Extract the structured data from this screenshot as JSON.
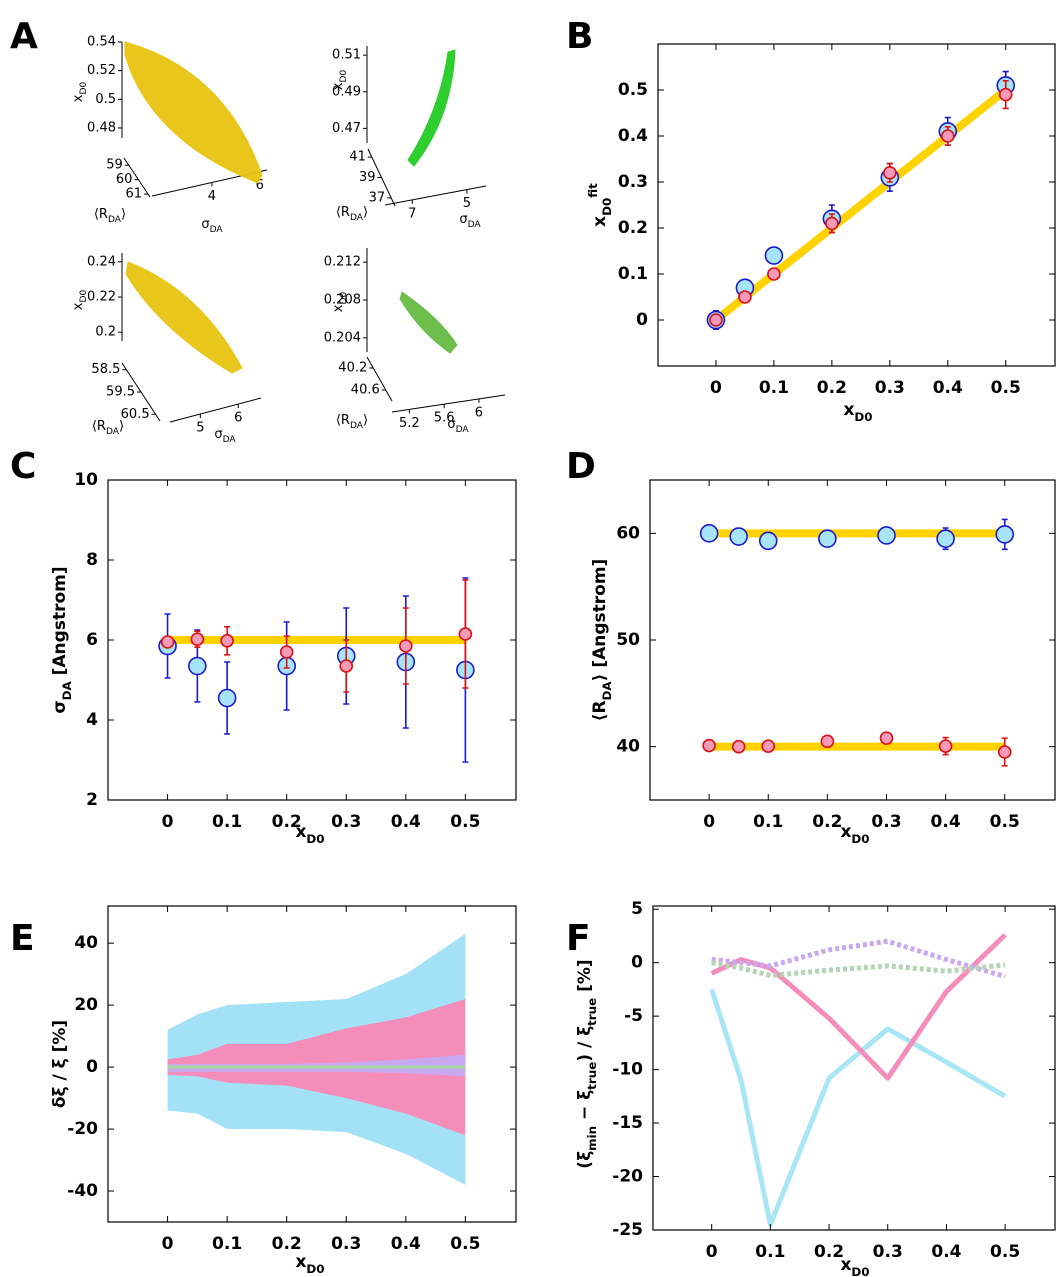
{
  "chart_data": [
    {
      "type": "surface3d",
      "label": "A",
      "subplots": [
        {
          "color": "#e8c410",
          "zlim": [
            0.473,
            0.54
          ],
          "zticks": [
            0.54,
            0.52,
            0.5,
            0.48
          ],
          "ylim": [
            58.5,
            61.2
          ],
          "yticks": [
            59,
            60,
            61
          ],
          "xlim": [
            1.5,
            6.3
          ],
          "xticks": [
            4,
            6
          ],
          "zlabel": [
            {
              "text": "x"
            },
            {
              "text": "D0",
              "script": "sub"
            }
          ],
          "ylabel": [
            {
              "text": "⟨R"
            },
            {
              "text": "DA",
              "script": "sub"
            },
            {
              "text": "⟩"
            }
          ],
          "xlabel": [
            {
              "text": "σ"
            },
            {
              "text": "DA",
              "script": "sub"
            }
          ]
        },
        {
          "color": "#22cc22",
          "zlim": [
            0.462,
            0.515
          ],
          "zticks": [
            0.51,
            0.49,
            0.47
          ],
          "ylim": [
            41.8,
            36.2
          ],
          "yticks": [
            41,
            39,
            37
          ],
          "xlim": [
            8,
            4.3
          ],
          "xticks": [
            7,
            5
          ],
          "zlabel": [
            {
              "text": "x"
            },
            {
              "text": "D0",
              "script": "sub"
            }
          ],
          "ylabel": [
            {
              "text": "⟨R"
            },
            {
              "text": "DA",
              "script": "sub"
            },
            {
              "text": "⟩"
            }
          ],
          "xlabel": [
            {
              "text": "σ"
            },
            {
              "text": "DA",
              "script": "sub"
            }
          ]
        },
        {
          "color": "#e8c410",
          "zlim": [
            0.195,
            0.245
          ],
          "zticks": [
            0.24,
            0.22,
            0.2
          ],
          "ylim": [
            58.2,
            60.8
          ],
          "yticks": [
            58.5,
            59.5,
            60.5
          ],
          "xlim": [
            4.2,
            6.6
          ],
          "xticks": [
            5,
            6
          ],
          "zlabel": [
            {
              "text": "x"
            },
            {
              "text": "D0",
              "script": "sub"
            }
          ],
          "ylabel": [
            {
              "text": "⟨R"
            },
            {
              "text": "DA",
              "script": "sub"
            },
            {
              "text": "⟩"
            }
          ],
          "xlabel": [
            {
              "text": "σ"
            },
            {
              "text": "DA",
              "script": "sub"
            }
          ]
        },
        {
          "color": "#66bb44",
          "zlim": [
            0.2025,
            0.2135
          ],
          "zticks": [
            0.212,
            0.208,
            0.204
          ],
          "ylim": [
            40.0,
            40.8
          ],
          "yticks": [
            40.2,
            40.6
          ],
          "xlim": [
            5.0,
            6.3
          ],
          "xticks": [
            5.2,
            5.6,
            6
          ],
          "zlabel": [
            {
              "text": "x"
            },
            {
              "text": "D0",
              "script": "sub"
            }
          ],
          "ylabel": [
            {
              "text": "⟨R"
            },
            {
              "text": "DA",
              "script": "sub"
            },
            {
              "text": "⟩"
            }
          ],
          "xlabel": [
            {
              "text": "σ"
            },
            {
              "text": "DA",
              "script": "sub"
            }
          ]
        }
      ]
    },
    {
      "type": "line",
      "label": "B",
      "x": [
        0,
        0.05,
        0.1,
        0.2,
        0.3,
        0.4,
        0.5
      ],
      "xlim": [
        -0.1,
        0.585
      ],
      "ylim": [
        -0.1,
        0.6
      ],
      "xticks": [
        0,
        0.1,
        0.2,
        0.3,
        0.4,
        0.5
      ],
      "yticks": [
        0,
        0.1,
        0.2,
        0.3,
        0.4,
        0.5
      ],
      "xlabel": [
        {
          "text": "x"
        },
        {
          "text": "D0",
          "script": "sub"
        }
      ],
      "ylabel": [
        {
          "text": "x"
        },
        {
          "text": "D0",
          "script": "sub"
        },
        {
          "text": "fit",
          "script": "super"
        }
      ],
      "series": [
        {
          "color": "#ffd200",
          "values": [
            0,
            0.05,
            0.1,
            0.2,
            0.3,
            0.4,
            0.5
          ]
        },
        {
          "color": "#a8e4f8",
          "edge": "#1a1ad0",
          "values": [
            0,
            0.07,
            0.14,
            0.22,
            0.31,
            0.41,
            0.51
          ],
          "errors": [
            0.02,
            0.015,
            0.015,
            0.03,
            0.03,
            0.03,
            0.03
          ]
        },
        {
          "color": "#f59ab8",
          "edge": "#dd1111",
          "values": [
            0,
            0.05,
            0.1,
            0.21,
            0.32,
            0.4,
            0.49
          ],
          "errors": [
            0.01,
            0.01,
            0.01,
            0.02,
            0.02,
            0.02,
            0.03
          ]
        }
      ]
    },
    {
      "type": "line",
      "label": "C",
      "x": [
        0,
        0.05,
        0.1,
        0.2,
        0.3,
        0.4,
        0.5
      ],
      "xlim": [
        -0.1,
        0.585
      ],
      "ylim": [
        2,
        10
      ],
      "xticks": [
        0,
        0.1,
        0.2,
        0.3,
        0.4,
        0.5
      ],
      "yticks": [
        2,
        4,
        6,
        8,
        10
      ],
      "xlabel": [
        {
          "text": "x"
        },
        {
          "text": "D0",
          "script": "sub"
        }
      ],
      "ylabel": [
        {
          "text": "σ"
        },
        {
          "text": "DA",
          "script": "sub"
        },
        {
          "text": " [Angstrom]"
        }
      ],
      "series": [
        {
          "color": "#ffd200",
          "values": [
            6,
            6,
            6,
            6,
            6,
            6,
            6
          ]
        },
        {
          "color": "#a8e4f8",
          "edge": "#1a1ad0",
          "values": [
            5.85,
            5.35,
            4.55,
            5.35,
            5.6,
            5.45,
            5.25
          ],
          "errors": [
            0.8,
            0.9,
            0.9,
            1.1,
            1.2,
            1.65,
            2.3
          ]
        },
        {
          "color": "#f59ab8",
          "edge": "#dd1111",
          "values": [
            5.95,
            6.02,
            5.98,
            5.7,
            5.35,
            5.85,
            6.15
          ],
          "errors": [
            0.1,
            0.2,
            0.35,
            0.4,
            0.65,
            0.95,
            1.35
          ]
        }
      ]
    },
    {
      "type": "line",
      "label": "D",
      "x": [
        0,
        0.05,
        0.1,
        0.2,
        0.3,
        0.4,
        0.5
      ],
      "xlim": [
        -0.1,
        0.585
      ],
      "ylim": [
        35,
        65
      ],
      "xticks": [
        0,
        0.1,
        0.2,
        0.3,
        0.4,
        0.5
      ],
      "yticks": [
        40,
        50,
        60
      ],
      "xlabel": [
        {
          "text": "x"
        },
        {
          "text": "D0",
          "script": "sub"
        }
      ],
      "ylabel": [
        {
          "text": "⟨R"
        },
        {
          "text": "DA",
          "script": "sub"
        },
        {
          "text": "⟩ [Angstrom]"
        }
      ],
      "series": [
        {
          "color": "#ffd200",
          "values": [
            60,
            60,
            60,
            60,
            60,
            60,
            60
          ]
        },
        {
          "color": "#ffd200",
          "values": [
            40,
            40,
            40,
            40,
            40,
            40,
            40
          ]
        },
        {
          "color": "#a8e4f8",
          "edge": "#1a1ad0",
          "values": [
            60,
            59.7,
            59.3,
            59.5,
            59.8,
            59.5,
            59.9
          ],
          "errors": [
            0.3,
            0.3,
            0.4,
            0.4,
            0.7,
            1.0,
            1.4
          ]
        },
        {
          "color": "#f59ab8",
          "edge": "#dd1111",
          "values": [
            40.1,
            40,
            40.05,
            40.5,
            40.8,
            40.05,
            39.5
          ],
          "errors": [
            0.2,
            0.2,
            0.2,
            0.3,
            0.3,
            0.8,
            1.3
          ]
        }
      ]
    },
    {
      "type": "area",
      "label": "E",
      "x": [
        0,
        0.05,
        0.1,
        0.2,
        0.3,
        0.4,
        0.5
      ],
      "xlim": [
        -0.1,
        0.585
      ],
      "ylim": [
        -50,
        52
      ],
      "xticks": [
        0,
        0.1,
        0.2,
        0.3,
        0.4,
        0.5
      ],
      "yticks": [
        -40,
        -20,
        0,
        20,
        40
      ],
      "xlabel": [
        {
          "text": "x"
        },
        {
          "text": "D0",
          "script": "sub"
        }
      ],
      "ylabel": [
        {
          "text": "δξ / ξ [%]"
        }
      ],
      "series": [
        {
          "color": "#a3e2f6",
          "high": [
            12,
            17,
            20,
            21,
            22,
            30,
            43
          ],
          "low": [
            -14,
            -15,
            -20,
            -20,
            -21,
            -28,
            -38
          ]
        },
        {
          "color": "#f58dbb",
          "high": [
            2.5,
            4,
            7.5,
            7.5,
            12.5,
            16,
            22
          ],
          "low": [
            -2.5,
            -3,
            -5,
            -6,
            -10,
            -15,
            -22
          ]
        },
        {
          "color": "#c9a8f2",
          "high": [
            1,
            1,
            1,
            1,
            1.5,
            2.5,
            4
          ],
          "low": [
            -1.5,
            -1.5,
            -1.5,
            -1.5,
            -1.5,
            -2,
            -3
          ]
        },
        {
          "color": "#a9d6a0",
          "high": [
            0.5,
            0.5,
            0.5,
            0.5,
            0.5,
            0.5,
            0.5
          ],
          "low": [
            -0.5,
            -0.5,
            -0.5,
            -0.5,
            -0.5,
            -0.5,
            -0.5
          ]
        }
      ]
    },
    {
      "type": "line",
      "label": "F",
      "x": [
        0,
        0.05,
        0.1,
        0.2,
        0.3,
        0.4,
        0.5
      ],
      "xlim": [
        -0.1,
        0.585
      ],
      "ylim": [
        -25,
        5.3
      ],
      "xticks": [
        0,
        0.1,
        0.2,
        0.3,
        0.4,
        0.5
      ],
      "yticks": [
        -25,
        -20,
        -15,
        -10,
        -5,
        0,
        5
      ],
      "xlabel": [
        {
          "text": "x"
        },
        {
          "text": "D0",
          "script": "sub"
        }
      ],
      "ylabel": [
        {
          "text": "(ξ"
        },
        {
          "text": "min",
          "script": "sub"
        },
        {
          "text": " − ξ"
        },
        {
          "text": "true",
          "script": "sub"
        },
        {
          "text": ") / ξ"
        },
        {
          "text": "true",
          "script": "sub"
        },
        {
          "text": " [%]"
        }
      ],
      "series": [
        {
          "color": "#a8e6f6",
          "values": [
            -2.5,
            -11,
            -24.5,
            -10.8,
            -6.2,
            -9.3,
            -12.5
          ]
        },
        {
          "color": "#f58dbb",
          "values": [
            -1,
            0.3,
            -0.5,
            -5.2,
            -10.8,
            -2.7,
            2.6
          ]
        },
        {
          "color": "#c9a8f2",
          "values": [
            0.3,
            0,
            -0.3,
            1.2,
            2,
            0.3,
            -1.3
          ],
          "dash": true
        },
        {
          "color": "#b5d3b5",
          "values": [
            0,
            -0.5,
            -1.2,
            -0.7,
            -0.3,
            -0.8,
            -0.2
          ],
          "dash": true
        }
      ]
    }
  ]
}
